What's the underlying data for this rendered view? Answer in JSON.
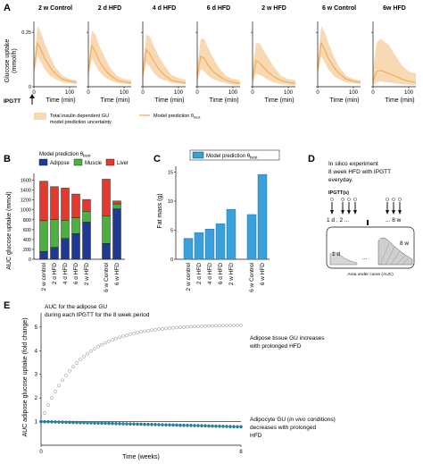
{
  "panels": {
    "A": "A",
    "B": "B",
    "C": "C",
    "D": "D",
    "E": "E"
  },
  "chart_data": [
    {
      "type": "area",
      "panel": "A",
      "subplot_titles": [
        "2 w Control",
        "2 d HFD",
        "4 d HFD",
        "6 d HFD",
        "2 w HFD",
        "6 w Control",
        "6w HFD"
      ],
      "ylabel": "Glucose uptake (mmol/h)",
      "ylabel_line1": "Glucose uptake",
      "ylabel_line2": "(mmol/h)",
      "xlabel": "Time (min)",
      "x_ticks": [
        0,
        100
      ],
      "y_ticks": [
        0,
        0.25
      ],
      "y_tick_labels": [
        "0",
        "0.25"
      ],
      "ylim": [
        0,
        0.3
      ],
      "xlim": [
        0,
        120
      ],
      "ipgtt_label": "IPGTT",
      "x": [
        0,
        10,
        20,
        30,
        45,
        60,
        80,
        100,
        120
      ],
      "series": [
        {
          "panel": "2 w Control",
          "upper": [
            0.11,
            0.28,
            0.25,
            0.2,
            0.14,
            0.09,
            0.05,
            0.035,
            0.03
          ],
          "model": [
            0.08,
            0.2,
            0.17,
            0.13,
            0.09,
            0.06,
            0.035,
            0.025,
            0.02
          ],
          "lower": [
            0.05,
            0.14,
            0.11,
            0.08,
            0.05,
            0.035,
            0.02,
            0.015,
            0.012
          ]
        },
        {
          "panel": "2 d HFD",
          "upper": [
            0.1,
            0.26,
            0.24,
            0.19,
            0.14,
            0.09,
            0.05,
            0.035,
            0.03
          ],
          "model": [
            0.07,
            0.19,
            0.16,
            0.12,
            0.08,
            0.055,
            0.03,
            0.022,
            0.018
          ],
          "lower": [
            0.04,
            0.13,
            0.1,
            0.07,
            0.045,
            0.03,
            0.018,
            0.013,
            0.01
          ]
        },
        {
          "panel": "4 d HFD",
          "upper": [
            0.1,
            0.24,
            0.23,
            0.19,
            0.14,
            0.1,
            0.055,
            0.04,
            0.032
          ],
          "model": [
            0.06,
            0.17,
            0.15,
            0.12,
            0.08,
            0.055,
            0.03,
            0.022,
            0.018
          ],
          "lower": [
            0.03,
            0.11,
            0.09,
            0.065,
            0.04,
            0.03,
            0.018,
            0.013,
            0.01
          ]
        },
        {
          "panel": "6 d HFD",
          "upper": [
            0.1,
            0.22,
            0.22,
            0.18,
            0.13,
            0.09,
            0.05,
            0.035,
            0.03
          ],
          "model": [
            0.05,
            0.14,
            0.13,
            0.1,
            0.07,
            0.05,
            0.03,
            0.02,
            0.016
          ],
          "lower": [
            0.02,
            0.08,
            0.07,
            0.05,
            0.035,
            0.025,
            0.015,
            0.01,
            0.008
          ]
        },
        {
          "panel": "2 w HFD",
          "upper": [
            0.09,
            0.2,
            0.2,
            0.17,
            0.13,
            0.09,
            0.05,
            0.035,
            0.03
          ],
          "model": [
            0.04,
            0.12,
            0.11,
            0.09,
            0.065,
            0.045,
            0.028,
            0.02,
            0.015
          ],
          "lower": [
            0.015,
            0.06,
            0.055,
            0.045,
            0.03,
            0.02,
            0.012,
            0.009,
            0.007
          ]
        },
        {
          "panel": "6 w Control",
          "upper": [
            0.11,
            0.28,
            0.25,
            0.2,
            0.14,
            0.09,
            0.05,
            0.035,
            0.03
          ],
          "model": [
            0.08,
            0.2,
            0.17,
            0.13,
            0.09,
            0.06,
            0.035,
            0.025,
            0.02
          ],
          "lower": [
            0.05,
            0.14,
            0.11,
            0.08,
            0.05,
            0.035,
            0.02,
            0.015,
            0.012
          ]
        },
        {
          "panel": "6w HFD",
          "upper": [
            0.08,
            0.2,
            0.22,
            0.21,
            0.19,
            0.15,
            0.1,
            0.07,
            0.06
          ],
          "model": [
            0.025,
            0.07,
            0.075,
            0.07,
            0.06,
            0.05,
            0.035,
            0.025,
            0.02
          ],
          "lower": [
            0.005,
            0.02,
            0.025,
            0.022,
            0.02,
            0.016,
            0.012,
            0.009,
            0.007
          ]
        }
      ],
      "legend": [
        "Total insulin dependent GU model prediction uncertainty",
        "Model prediction θ_best"
      ],
      "legend_band_line1": "Total insulin dependent GU",
      "legend_band_line2": "model prediction uncertainty",
      "legend_model": "Model prediction θ",
      "legend_model_sub": "best",
      "colors": {
        "band": "#f8d9b4",
        "line": "#f0a848"
      }
    },
    {
      "type": "bar",
      "panel": "B",
      "stacked": true,
      "ylabel": "AUC glucose uptake (mmol)",
      "ylim": [
        0,
        1700
      ],
      "y_ticks": [
        0,
        200,
        400,
        600,
        800,
        1000,
        1200,
        1400,
        1600
      ],
      "categories": [
        "2 w control",
        "2 d HFD",
        "4 d HFD",
        "6 d HFD",
        "2 w HFD",
        "6 w Control",
        "6 w HFD"
      ],
      "series": [
        {
          "name": "Adipose",
          "values": [
            160,
            240,
            420,
            520,
            750,
            320,
            1020
          ],
          "color": "#1f3a93"
        },
        {
          "name": "Muscle",
          "values": [
            620,
            560,
            370,
            320,
            220,
            560,
            100
          ],
          "color": "#4caf3f"
        },
        {
          "name": "Liver",
          "values": [
            800,
            670,
            650,
            480,
            240,
            740,
            60
          ],
          "color": "#e23a2e"
        }
      ],
      "legend_title": "Model prediction θ_best",
      "legend_title_main": "Model prediction θ",
      "legend_title_sub": "best"
    },
    {
      "type": "bar",
      "panel": "C",
      "ylabel": "Fat mass (g)",
      "ylim": [
        0,
        16
      ],
      "y_ticks": [
        0,
        5,
        10,
        15
      ],
      "categories": [
        "2 w control",
        "2 d HFD",
        "4 d HFD",
        "6 d HFD",
        "2 w HFD",
        "6 w Control",
        "6 w HFD"
      ],
      "values": [
        3.6,
        4.6,
        5.2,
        6.1,
        8.6,
        7.7,
        14.6
      ],
      "legend": "Model prediction θ_best",
      "legend_main": "Model prediction θ",
      "legend_sub": "best",
      "color": "#3aa0dc"
    },
    {
      "type": "scatter",
      "panel": "E",
      "ylabel": "AUC adipose glucose uptake (fold change)",
      "xlabel": "Time (weeks)",
      "xlim": [
        0,
        8
      ],
      "ylim": [
        0,
        5.6
      ],
      "x_ticks": [
        0,
        8
      ],
      "y_ticks": [
        1,
        2,
        3,
        4,
        5
      ],
      "title": "AUC for the adipose GU during each IPGTT for the 8 week period",
      "title_line1": "AUC for the adipose GU",
      "title_line2": "during each IPGTT for the 8 week period",
      "series": [
        {
          "name": "Adipose tissue GU",
          "model": "exponential",
          "start": 1.0,
          "end": 5.1,
          "rate": 0.65,
          "color": "#ffffff",
          "edge": "#888888"
        },
        {
          "name": "Adipocyte GU",
          "model": "linear",
          "start": 1.0,
          "end": 0.78,
          "color": "#1e7fa8",
          "edge": "#1e6d90"
        }
      ],
      "n_points": 57,
      "reference_line": 1,
      "annotations": {
        "upper_1": "Adipose tissue GU increases",
        "upper_2": "with prolonged HFD",
        "lower_1a": "Adipocyte GU (",
        "lower_1b": "in vivo",
        "lower_1c": " conditions)",
        "lower_2": "decreases with prolonged",
        "lower_3": "HFD"
      }
    }
  ],
  "panel_d": {
    "line1": "In silico experiment",
    "line2": "8 week HFD with IPGTT",
    "line3": "everyday.",
    "ipgtt_label": "IPGTT(s)",
    "day_left": "1 d , 2 ...",
    "day_right": "... 8 w",
    "box_left_label": "1 d",
    "box_right_label": "8 w",
    "box_dots": "...",
    "caption": "Area under curve (AUC)"
  }
}
